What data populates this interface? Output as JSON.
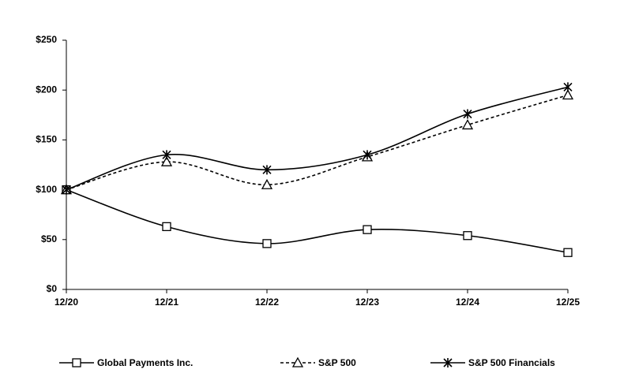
{
  "chart_data": {
    "type": "line",
    "categories": [
      "12/20",
      "12/21",
      "12/22",
      "12/23",
      "12/24",
      "12/25"
    ],
    "series": [
      {
        "name": "Global Payments Inc.",
        "color": "#000000",
        "line_style": "solid",
        "marker": "square",
        "values": [
          100,
          63,
          46,
          60,
          54,
          37
        ]
      },
      {
        "name": "S&P 500",
        "color": "#000000",
        "line_style": "dashed",
        "marker": "triangle",
        "values": [
          100,
          128,
          105,
          133,
          165,
          195
        ]
      },
      {
        "name": "S&P 500 Financials",
        "color": "#000000",
        "line_style": "solid",
        "marker": "asterisk",
        "values": [
          100,
          135,
          120,
          135,
          176,
          203
        ]
      }
    ],
    "ylim": [
      0,
      250
    ],
    "yticks": [
      {
        "value": 0,
        "label": "$0"
      },
      {
        "value": 50,
        "label": "$50"
      },
      {
        "value": 100,
        "label": "$100"
      },
      {
        "value": 150,
        "label": "$150"
      },
      {
        "value": 200,
        "label": "$200"
      },
      {
        "value": 250,
        "label": "$250"
      }
    ],
    "legend": "bottom"
  }
}
